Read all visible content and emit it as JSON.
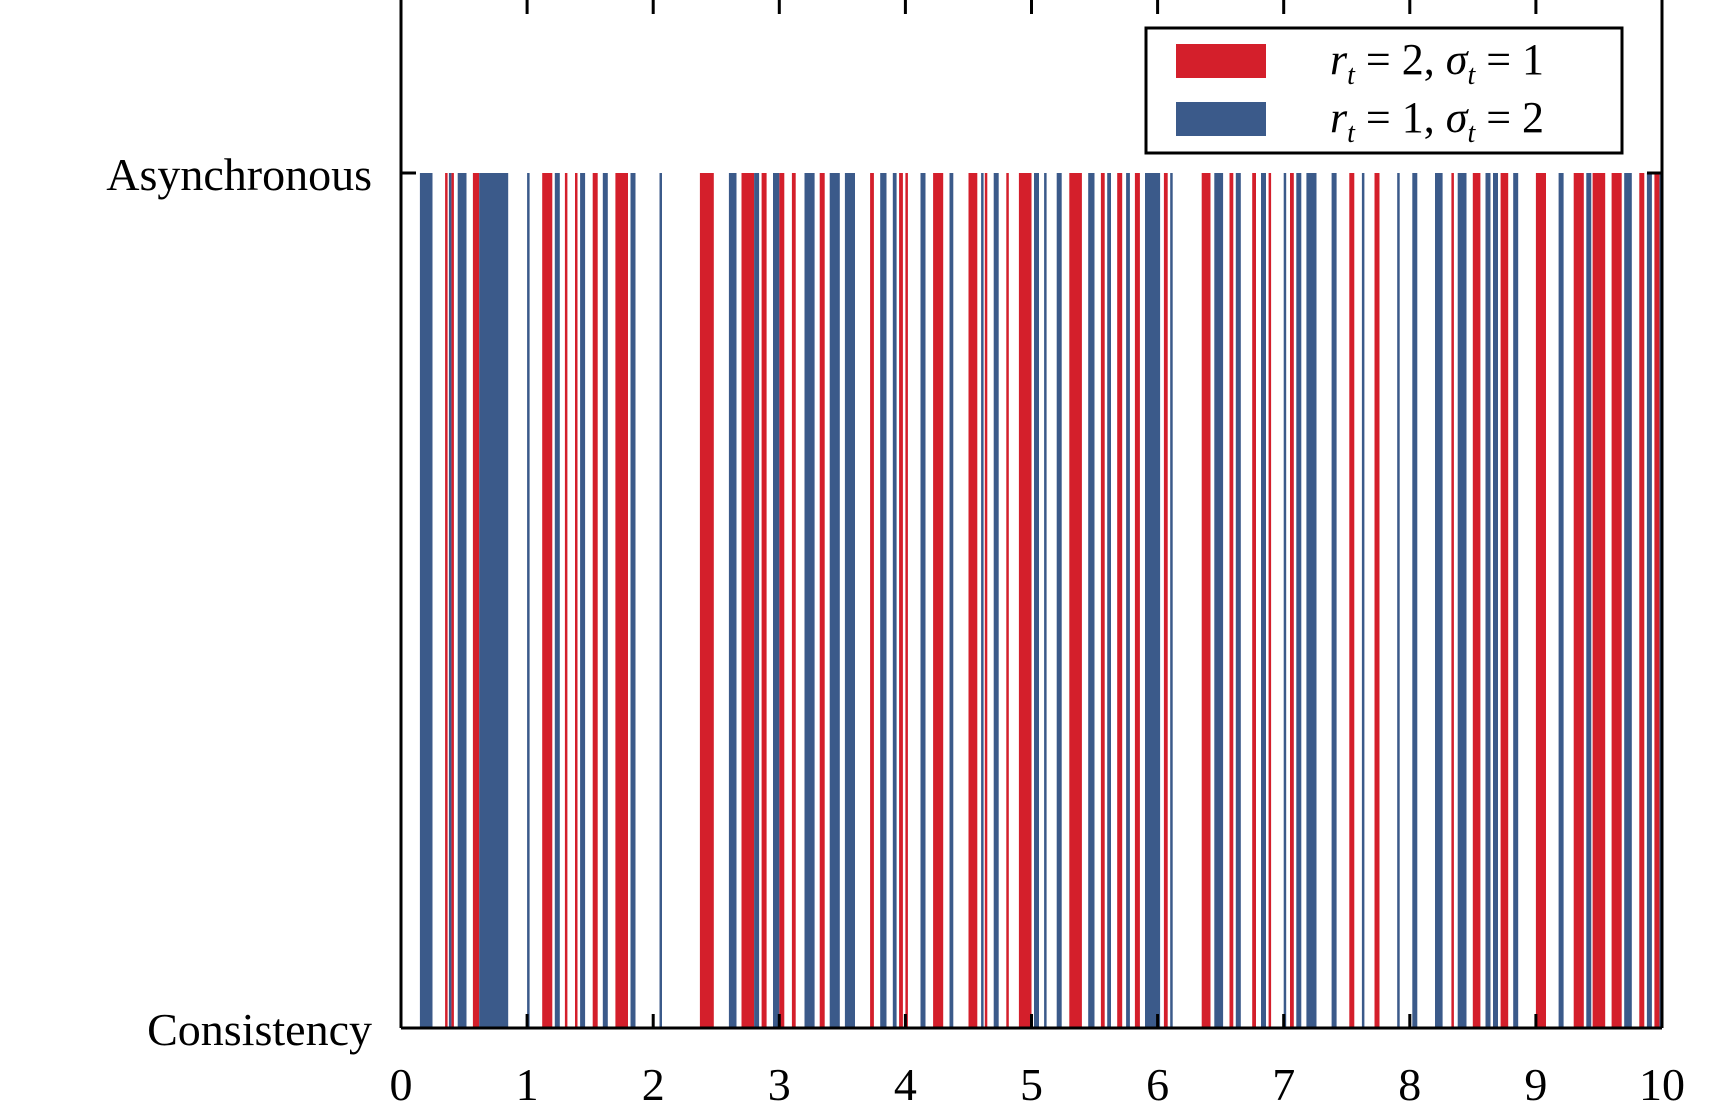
{
  "chart_data": {
    "type": "bar",
    "xlim": [
      0,
      10
    ],
    "x_ticks": [
      "0",
      "1",
      "2",
      "3",
      "4",
      "5",
      "6",
      "7",
      "8",
      "9",
      "10"
    ],
    "y_ticks": [
      "Consistency",
      "Asynchronous"
    ],
    "legend_position": "top-right",
    "series": [
      {
        "name_parts": [
          "r",
          "t",
          " = 2, ",
          "σ",
          "t",
          " = 1"
        ],
        "color": "#d41f2b",
        "intervals": [
          [
            0.35,
            0.37
          ],
          [
            0.4,
            0.42
          ],
          [
            0.57,
            0.62
          ],
          [
            1.12,
            1.2
          ],
          [
            1.3,
            1.32
          ],
          [
            1.38,
            1.4
          ],
          [
            1.52,
            1.56
          ],
          [
            1.7,
            1.8
          ],
          [
            2.37,
            2.48
          ],
          [
            2.7,
            2.8
          ],
          [
            2.86,
            2.9
          ],
          [
            3.0,
            3.04
          ],
          [
            3.1,
            3.13
          ],
          [
            3.32,
            3.36
          ],
          [
            3.72,
            3.75
          ],
          [
            3.95,
            3.98
          ],
          [
            4.0,
            4.02
          ],
          [
            4.22,
            4.3
          ],
          [
            4.5,
            4.57
          ],
          [
            4.63,
            4.65
          ],
          [
            4.8,
            4.82
          ],
          [
            4.9,
            5.0
          ],
          [
            5.3,
            5.4
          ],
          [
            5.55,
            5.58
          ],
          [
            5.68,
            5.72
          ],
          [
            5.82,
            5.86
          ],
          [
            6.05,
            6.08
          ],
          [
            6.35,
            6.42
          ],
          [
            6.57,
            6.6
          ],
          [
            6.75,
            6.78
          ],
          [
            6.88,
            6.9
          ],
          [
            7.05,
            7.08
          ],
          [
            7.52,
            7.56
          ],
          [
            7.72,
            7.76
          ],
          [
            8.33,
            8.35
          ],
          [
            8.5,
            8.56
          ],
          [
            8.72,
            8.78
          ],
          [
            9.0,
            9.08
          ],
          [
            9.3,
            9.38
          ],
          [
            9.45,
            9.55
          ],
          [
            9.6,
            9.68
          ],
          [
            9.82,
            9.86
          ],
          [
            9.94,
            9.98
          ]
        ]
      },
      {
        "name_parts": [
          "r",
          "t",
          " = 1, ",
          "σ",
          "t",
          " = 2"
        ],
        "color": "#3b5a8a",
        "intervals": [
          [
            0.15,
            0.25
          ],
          [
            0.38,
            0.4
          ],
          [
            0.45,
            0.52
          ],
          [
            0.62,
            0.85
          ],
          [
            1.0,
            1.02
          ],
          [
            1.22,
            1.26
          ],
          [
            1.42,
            1.46
          ],
          [
            1.6,
            1.64
          ],
          [
            1.82,
            1.86
          ],
          [
            2.05,
            2.07
          ],
          [
            2.6,
            2.66
          ],
          [
            2.8,
            2.84
          ],
          [
            2.95,
            3.0
          ],
          [
            3.2,
            3.28
          ],
          [
            3.4,
            3.48
          ],
          [
            3.52,
            3.6
          ],
          [
            3.8,
            3.85
          ],
          [
            3.9,
            3.93
          ],
          [
            4.12,
            4.16
          ],
          [
            4.35,
            4.38
          ],
          [
            4.6,
            4.62
          ],
          [
            4.7,
            4.74
          ],
          [
            5.02,
            5.06
          ],
          [
            5.1,
            5.12
          ],
          [
            5.2,
            5.24
          ],
          [
            5.45,
            5.5
          ],
          [
            5.6,
            5.63
          ],
          [
            5.75,
            5.78
          ],
          [
            5.9,
            6.02
          ],
          [
            6.1,
            6.12
          ],
          [
            6.45,
            6.52
          ],
          [
            6.62,
            6.66
          ],
          [
            6.82,
            6.86
          ],
          [
            7.0,
            7.02
          ],
          [
            7.1,
            7.14
          ],
          [
            7.18,
            7.26
          ],
          [
            7.38,
            7.42
          ],
          [
            7.62,
            7.64
          ],
          [
            7.9,
            7.92
          ],
          [
            8.02,
            8.06
          ],
          [
            8.2,
            8.26
          ],
          [
            8.38,
            8.45
          ],
          [
            8.6,
            8.64
          ],
          [
            8.66,
            8.7
          ],
          [
            8.82,
            8.86
          ],
          [
            9.18,
            9.22
          ],
          [
            9.4,
            9.44
          ],
          [
            9.7,
            9.76
          ],
          [
            9.88,
            9.92
          ],
          [
            9.98,
            10.0
          ]
        ]
      }
    ]
  }
}
